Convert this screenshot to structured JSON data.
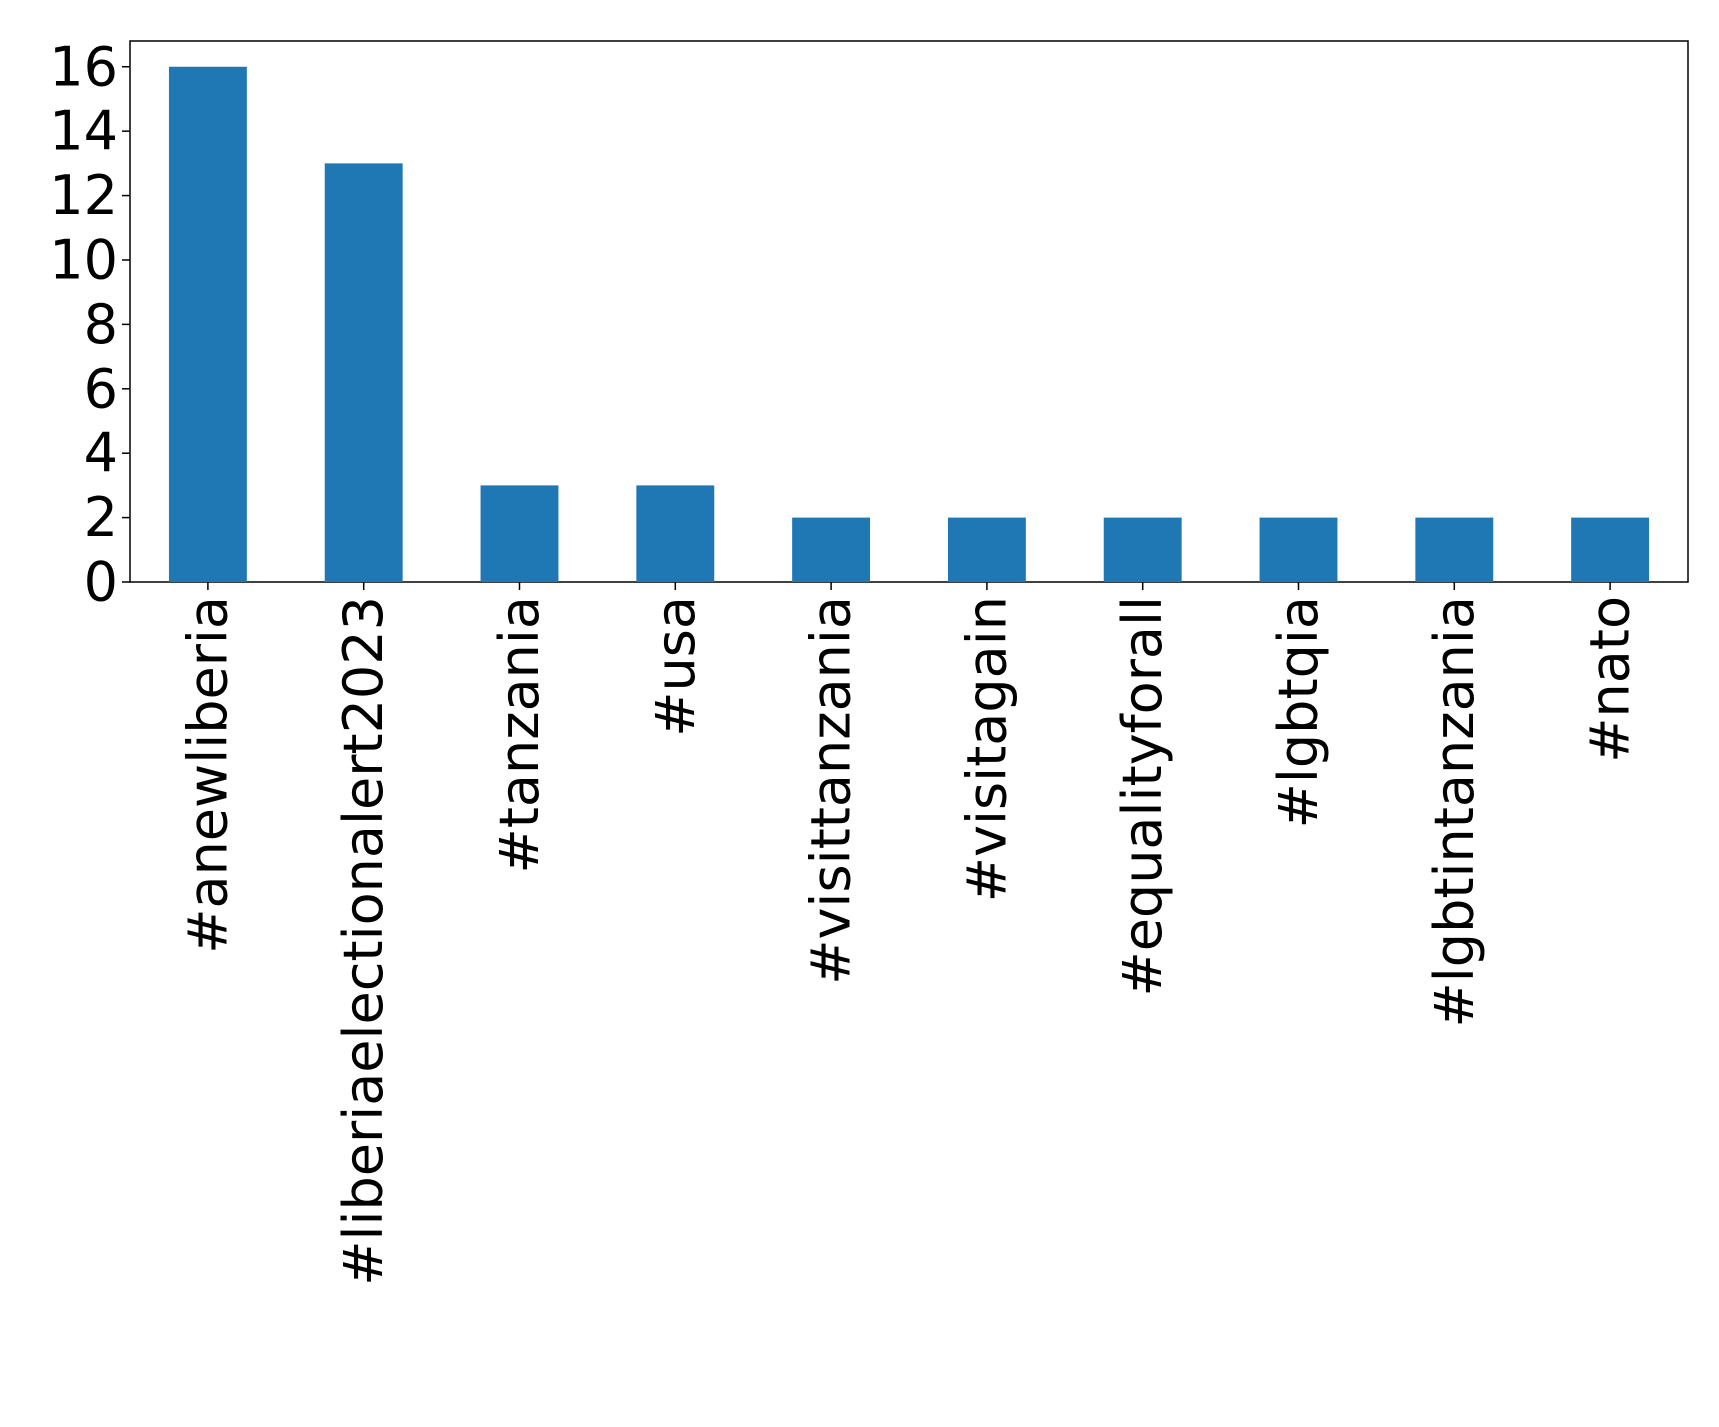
{
  "chart_data": {
    "type": "bar",
    "categories": [
      "#anewliberia",
      "#liberiaelectionalert2023",
      "#tanzania",
      "#usa",
      "#visittanzania",
      "#visitagain",
      "#equalityforall",
      "#lgbtqia",
      "#lgbtintanzania",
      "#nato"
    ],
    "values": [
      16,
      13,
      3,
      3,
      2,
      2,
      2,
      2,
      2,
      2
    ],
    "color": "#1f77b4",
    "ylim": [
      0,
      16.8
    ],
    "yticks": [
      0,
      2,
      4,
      6,
      8,
      10,
      12,
      14,
      16
    ],
    "grid": false
  }
}
